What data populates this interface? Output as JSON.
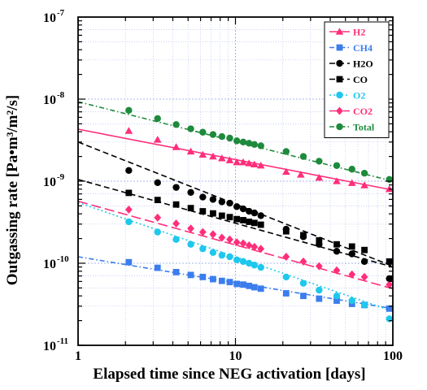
{
  "chart_data": {
    "type": "scatter",
    "title": "",
    "xlabel": "Elapsed time since NEG activation [days]",
    "ylabel": "Outgassing rate [Pa•m³/m²/s]",
    "x_scale": "log",
    "y_scale": "log",
    "xlim": [
      1,
      100
    ],
    "ylim": [
      1e-11,
      1e-07
    ],
    "grid": true,
    "legend_position": "top-right",
    "x_tick_labels": [
      {
        "value": 1,
        "label": "1"
      },
      {
        "value": 10,
        "label": "10"
      },
      {
        "value": 100,
        "label": "100"
      }
    ],
    "y_tick_labels": [
      {
        "value": 1e-11,
        "base": "10",
        "exp": "-11"
      },
      {
        "value": 1e-10,
        "base": "10",
        "exp": "-10"
      },
      {
        "value": 1e-09,
        "base": "10",
        "exp": "-9"
      },
      {
        "value": 1e-08,
        "base": "10",
        "exp": "-8"
      },
      {
        "value": 1e-07,
        "base": "10",
        "exp": "-7"
      }
    ],
    "series": [
      {
        "name": "H2",
        "color": "#ff2e7a",
        "marker": "triangle",
        "line_style": "solid",
        "points": [
          [
            2.1,
            4.1e-09
          ],
          [
            3.2,
            3.2e-09
          ],
          [
            4.2,
            2.6e-09
          ],
          [
            5.2,
            2.3e-09
          ],
          [
            6.2,
            2.1e-09
          ],
          [
            7.2,
            2e-09
          ],
          [
            8.2,
            1.9e-09
          ],
          [
            9.2,
            1.8e-09
          ],
          [
            10.2,
            1.7e-09
          ],
          [
            11.2,
            1.7e-09
          ],
          [
            12.2,
            1.65e-09
          ],
          [
            13.2,
            1.6e-09
          ],
          [
            14.5,
            1.55e-09
          ],
          [
            21,
            1.3e-09
          ],
          [
            26,
            1.2e-09
          ],
          [
            34,
            1.1e-09
          ],
          [
            44,
            1e-09
          ],
          [
            55,
            9.5e-10
          ],
          [
            66,
            8.9e-10
          ],
          [
            95,
            8e-10
          ]
        ],
        "fit": [
          [
            1,
            4.3e-09
          ],
          [
            100,
            7.8e-10
          ]
        ]
      },
      {
        "name": "CH4",
        "color": "#3b7ded",
        "marker": "square",
        "line_style": "dashdot",
        "points": [
          [
            2.1,
            1.03e-10
          ],
          [
            3.2,
            8.8e-11
          ],
          [
            4.2,
            7.8e-11
          ],
          [
            5.2,
            7.2e-11
          ],
          [
            6.2,
            6.8e-11
          ],
          [
            7.2,
            6.4e-11
          ],
          [
            8.2,
            6.1e-11
          ],
          [
            9.2,
            5.9e-11
          ],
          [
            10.2,
            5.6e-11
          ],
          [
            11.2,
            5.5e-11
          ],
          [
            12.2,
            5.3e-11
          ],
          [
            13.2,
            5.1e-11
          ],
          [
            14.5,
            4.9e-11
          ],
          [
            21,
            4.3e-11
          ],
          [
            27,
            4e-11
          ],
          [
            34,
            3.7e-11
          ],
          [
            44,
            3.5e-11
          ],
          [
            55,
            3.2e-11
          ],
          [
            66,
            3.1e-11
          ],
          [
            95,
            2.8e-11
          ]
        ],
        "fit": [
          [
            1,
            1.2e-10
          ],
          [
            100,
            2.8e-11
          ]
        ]
      },
      {
        "name": "H2O",
        "color": "#000000",
        "marker": "circle",
        "line_style": "dashed",
        "points": [
          [
            2.1,
            1.35e-09
          ],
          [
            3.2,
            9.6e-10
          ],
          [
            4.2,
            8.4e-10
          ],
          [
            5.2,
            7.3e-10
          ],
          [
            6.2,
            6.4e-10
          ],
          [
            7.2,
            6e-10
          ],
          [
            8.2,
            5.6e-10
          ],
          [
            9.2,
            5.4e-10
          ],
          [
            10.2,
            4.9e-10
          ],
          [
            11.2,
            4.6e-10
          ],
          [
            12.2,
            4.3e-10
          ],
          [
            13.2,
            4.1e-10
          ],
          [
            14.5,
            3.8e-10
          ],
          [
            21,
            2.6e-10
          ],
          [
            27,
            2.1e-10
          ],
          [
            34,
            1.7e-10
          ],
          [
            44,
            1.4e-10
          ],
          [
            55,
            1.3e-10
          ],
          [
            66,
            1.05e-10
          ],
          [
            95,
            6.5e-11
          ]
        ],
        "fit": [
          [
            1,
            3e-09
          ],
          [
            100,
            9.2e-11
          ]
        ]
      },
      {
        "name": "CO",
        "color": "#000000",
        "marker": "square",
        "line_style": "dashed",
        "points": [
          [
            2.1,
            7.2e-10
          ],
          [
            3.2,
            5.9e-10
          ],
          [
            4.2,
            5.2e-10
          ],
          [
            5.2,
            4.7e-10
          ],
          [
            6.2,
            4.3e-10
          ],
          [
            7.2,
            4.05e-10
          ],
          [
            8.2,
            3.8e-10
          ],
          [
            9.2,
            3.65e-10
          ],
          [
            10.2,
            3.45e-10
          ],
          [
            11.2,
            3.35e-10
          ],
          [
            12.2,
            3.2e-10
          ],
          [
            13.2,
            3.1e-10
          ],
          [
            14.5,
            2.95e-10
          ],
          [
            21,
            2.45e-10
          ],
          [
            27,
            2.2e-10
          ],
          [
            34,
            1.9e-10
          ],
          [
            44,
            1.7e-10
          ],
          [
            55,
            1.6e-10
          ],
          [
            66,
            1.45e-10
          ],
          [
            95,
            1.05e-10
          ]
        ],
        "fit": [
          [
            1,
            1.05e-09
          ],
          [
            100,
            9e-11
          ]
        ]
      },
      {
        "name": "O2",
        "color": "#1ec8ec",
        "marker": "circle",
        "line_style": "dotted",
        "points": [
          [
            2.1,
            3.2e-10
          ],
          [
            3.2,
            2.4e-10
          ],
          [
            4.2,
            1.95e-10
          ],
          [
            5.2,
            1.7e-10
          ],
          [
            6.2,
            1.5e-10
          ],
          [
            7.2,
            1.35e-10
          ],
          [
            8.2,
            1.25e-10
          ],
          [
            9.2,
            1.2e-10
          ],
          [
            10.2,
            1.1e-10
          ],
          [
            11.2,
            1.05e-10
          ],
          [
            12.2,
            1e-10
          ],
          [
            13.2,
            9.5e-11
          ],
          [
            14.5,
            8.9e-11
          ],
          [
            21,
            6.8e-11
          ],
          [
            27,
            5.7e-11
          ],
          [
            34,
            4.7e-11
          ],
          [
            44,
            4e-11
          ],
          [
            55,
            3.5e-11
          ],
          [
            66,
            3.1e-11
          ],
          [
            95,
            2.1e-11
          ]
        ],
        "fit": [
          [
            1,
            5.5e-10
          ],
          [
            100,
            2.6e-11
          ]
        ]
      },
      {
        "name": "CO2",
        "color": "#ff2e7a",
        "marker": "diamond",
        "line_style": "longdash",
        "points": [
          [
            2.1,
            4.5e-10
          ],
          [
            3.2,
            3.6e-10
          ],
          [
            4.2,
            3.05e-10
          ],
          [
            5.2,
            2.65e-10
          ],
          [
            6.2,
            2.4e-10
          ],
          [
            7.2,
            2.25e-10
          ],
          [
            8.2,
            2.05e-10
          ],
          [
            9.2,
            1.95e-10
          ],
          [
            10.2,
            1.8e-10
          ],
          [
            11.2,
            1.75e-10
          ],
          [
            12.2,
            1.65e-10
          ],
          [
            13.2,
            1.58e-10
          ],
          [
            14.5,
            1.5e-10
          ],
          [
            21,
            1.2e-10
          ],
          [
            27,
            1.05e-10
          ],
          [
            34,
            9.2e-11
          ],
          [
            44,
            8.2e-11
          ],
          [
            55,
            7.3e-11
          ],
          [
            66,
            6.8e-11
          ],
          [
            95,
            5.5e-11
          ]
        ],
        "fit": [
          [
            1,
            5.7e-10
          ],
          [
            100,
            4.9e-11
          ]
        ]
      },
      {
        "name": "Total",
        "color": "#1e8a3c",
        "marker": "circle",
        "line_style": "dashdot",
        "points": [
          [
            2.1,
            7.3e-09
          ],
          [
            3.2,
            5.8e-09
          ],
          [
            4.2,
            4.9e-09
          ],
          [
            5.2,
            4.35e-09
          ],
          [
            6.2,
            3.95e-09
          ],
          [
            7.2,
            3.7e-09
          ],
          [
            8.2,
            3.5e-09
          ],
          [
            9.2,
            3.35e-09
          ],
          [
            10.2,
            3.1e-09
          ],
          [
            11.2,
            3e-09
          ],
          [
            12.2,
            2.9e-09
          ],
          [
            13.2,
            2.8e-09
          ],
          [
            14.5,
            2.7e-09
          ],
          [
            21,
            2.3e-09
          ],
          [
            27,
            2e-09
          ],
          [
            34,
            1.75e-09
          ],
          [
            44,
            1.55e-09
          ],
          [
            55,
            1.4e-09
          ],
          [
            66,
            1.25e-09
          ],
          [
            95,
            1.05e-09
          ]
        ],
        "fit": [
          [
            1,
            9.3e-09
          ],
          [
            100,
            1e-09
          ]
        ]
      }
    ]
  }
}
